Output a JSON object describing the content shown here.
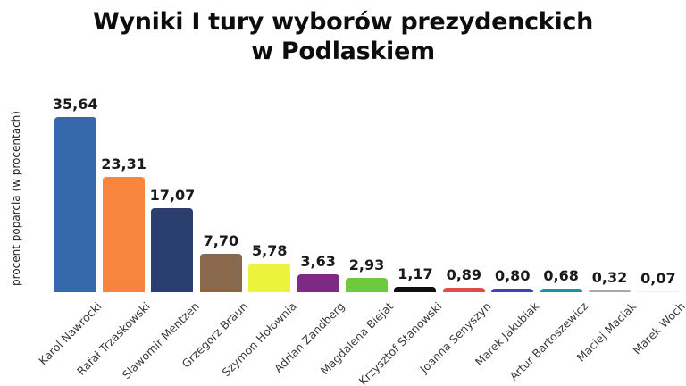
{
  "title": {
    "line1": "Wyniki I tury wyborów prezydenckich",
    "line2": "w Podlaskiem"
  },
  "chart_data": {
    "type": "bar",
    "title": "Wyniki I tury wyborów prezydenckich w Podlaskiem",
    "xlabel": "",
    "ylabel": "procent poparcia (w procentach)",
    "ylim": [
      0,
      36
    ],
    "grid": false,
    "legend": "none",
    "y_axis_ticks_visible": false,
    "decimal_separator": ",",
    "categories": [
      "Karol Nawrocki",
      "Rafał Trzaskowski",
      "Sławomir Mentzen",
      "Grzegorz Braun",
      "Szymon Hołownia",
      "Adrian Zandberg",
      "Magdalena Biejat",
      "Krzysztof Stanowski",
      "Joanna Senyszyn",
      "Marek Jakubiak",
      "Artur Bartoszewicz",
      "Maciej Maciak",
      "Marek Woch"
    ],
    "values": [
      35.64,
      23.31,
      17.07,
      7.7,
      5.78,
      3.63,
      2.93,
      1.17,
      0.89,
      0.8,
      0.68,
      0.32,
      0.07
    ],
    "value_labels": [
      "35,64",
      "23,31",
      "17,07",
      "7,70",
      "5,78",
      "3,63",
      "2,93",
      "1,17",
      "0,89",
      "0,80",
      "0,68",
      "0,32",
      "0,07"
    ],
    "bar_colors": [
      "#3468aa",
      "#f9843e",
      "#2b3f6e",
      "#8a684b",
      "#edf23c",
      "#7b2b80",
      "#6fc93c",
      "#0f0f0f",
      "#e14b4b",
      "#3348bc",
      "#1795a5",
      "#a9a9a9",
      "#eeedea"
    ]
  }
}
